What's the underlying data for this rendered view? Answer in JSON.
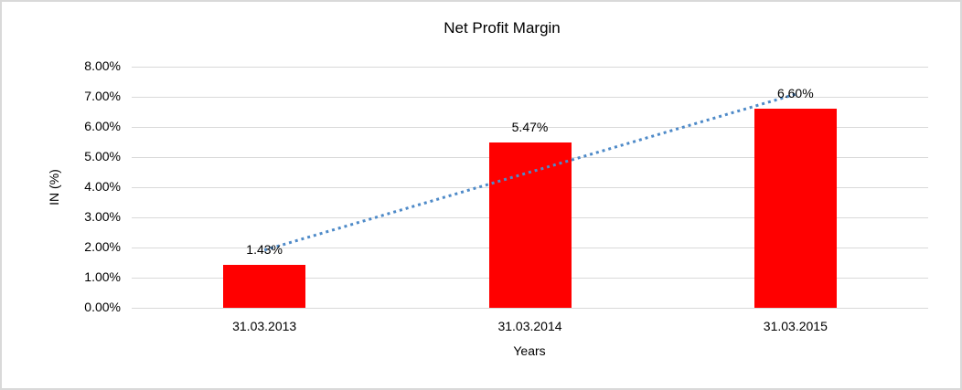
{
  "chart_data": {
    "type": "bar",
    "title": "Net Profit Margin",
    "categories": [
      "31.03.2013",
      "31.03.2014",
      "31.03.2015"
    ],
    "values": [
      1.43,
      5.47,
      6.6
    ],
    "data_labels": [
      "1.43%",
      "5.47%",
      "6.60%"
    ],
    "xlabel": "Years",
    "ylabel": "IN (%)",
    "ylim": [
      0,
      8
    ],
    "ytick_step": 1,
    "ytick_labels": [
      "0.00%",
      "1.00%",
      "2.00%",
      "3.00%",
      "4.00%",
      "5.00%",
      "6.00%",
      "7.00%",
      "8.00%"
    ],
    "grid": true,
    "legend": "none",
    "trendline": {
      "type": "linear",
      "style": "dotted",
      "endpoints_percent": [
        1.915,
        7.085
      ]
    },
    "colors": {
      "bar": "#FF0000",
      "trendline": "#4E8AC8",
      "gridline": "#D9D9D9",
      "text": "#000000",
      "background": "#FFFFFF",
      "border": "#D9D9D9"
    }
  }
}
